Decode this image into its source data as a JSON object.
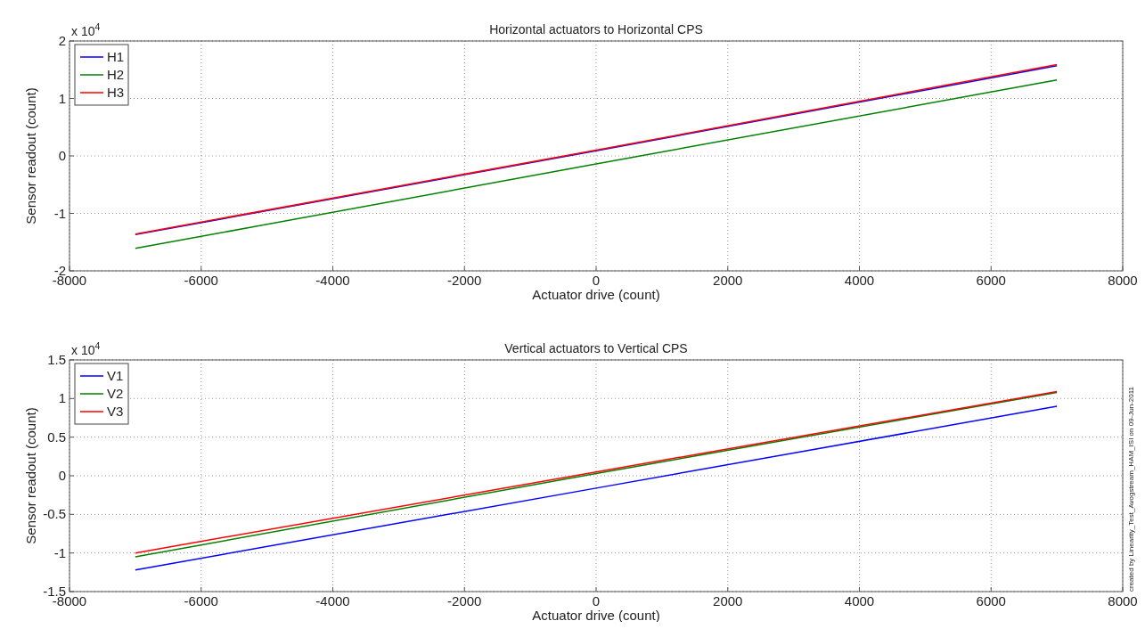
{
  "chart_data": [
    {
      "type": "line",
      "title": "Horizontal actuators to Horizontal CPS",
      "xlabel": "Actuator drive (count)",
      "ylabel": "Sensor readout (count)",
      "x": [
        -7000,
        0,
        7000
      ],
      "series": [
        {
          "name": "H1",
          "color": "#0000ff",
          "values": [
            -1.37,
            0.09,
            1.57
          ]
        },
        {
          "name": "H2",
          "color": "#008000",
          "values": [
            -1.61,
            -0.14,
            1.32
          ]
        },
        {
          "name": "H3",
          "color": "#ff0000",
          "values": [
            -1.36,
            0.1,
            1.59
          ]
        }
      ],
      "xlim": [
        -8000,
        8000
      ],
      "xticks": [
        -8000,
        -6000,
        -4000,
        -2000,
        0,
        2000,
        4000,
        6000,
        8000
      ],
      "ylim": [
        -2,
        2
      ],
      "yticks": [
        -2,
        -1,
        0,
        1,
        2
      ],
      "annotations": [
        "x 10$^{4}$"
      ],
      "grid": true,
      "legend": "top left"
    },
    {
      "type": "line",
      "title": "Vertical actuators to Vertical CPS",
      "xlabel": "Actuator drive (count)",
      "ylabel": "Sensor readout (count)",
      "x": [
        -7000,
        0,
        7000
      ],
      "series": [
        {
          "name": "V1",
          "color": "#0000ff",
          "values": [
            -1.22,
            -0.16,
            0.9
          ]
        },
        {
          "name": "V2",
          "color": "#008000",
          "values": [
            -1.05,
            0.03,
            1.08
          ]
        },
        {
          "name": "V3",
          "color": "#ff0000",
          "values": [
            -1.0,
            0.05,
            1.09
          ]
        }
      ],
      "xlim": [
        -8000,
        8000
      ],
      "xticks": [
        -8000,
        -6000,
        -4000,
        -2000,
        0,
        2000,
        4000,
        6000,
        8000
      ],
      "ylim": [
        -1.5,
        1.5
      ],
      "yticks": [
        -1.5,
        -1,
        -0.5,
        0,
        0.5,
        1,
        1.5
      ],
      "annotations": [
        "x 10$^{4}$",
        "created by Linearity_Test_Avogstream_HAM_ISI on 09-Jun-2011"
      ],
      "grid": true,
      "legend": "top left"
    }
  ]
}
